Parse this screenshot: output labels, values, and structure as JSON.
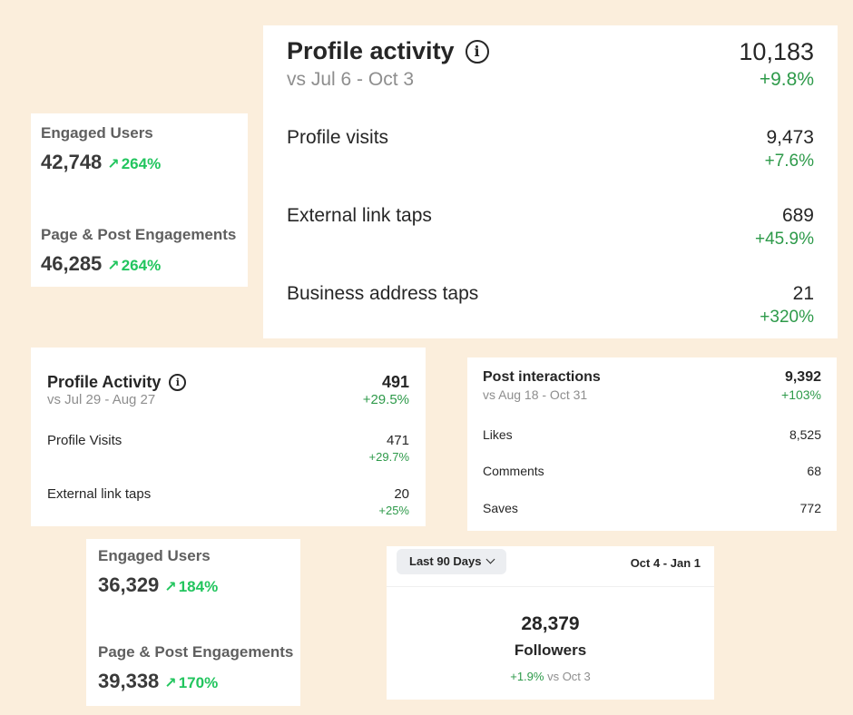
{
  "engaged_card_1": {
    "engaged_label": "Engaged Users",
    "engaged_value": "42,748",
    "engaged_arrow": "↗",
    "engaged_pct": "264%",
    "engagements_label": "Page & Post Engagements",
    "engagements_value": "46,285",
    "engagements_arrow": "↗",
    "engagements_pct": "264%"
  },
  "profile_activity_large": {
    "title": "Profile activity",
    "info_icon": "i",
    "subtitle": "vs Jul 6 - Oct 3",
    "total": "10,183",
    "total_change": "+9.8%",
    "rows": [
      {
        "label": "Profile visits",
        "value": "9,473",
        "change": "+7.6%"
      },
      {
        "label": "External link taps",
        "value": "689",
        "change": "+45.9%"
      },
      {
        "label": "Business address taps",
        "value": "21",
        "change": "+320%"
      }
    ]
  },
  "profile_activity_small": {
    "title": "Profile Activity",
    "info_icon": "i",
    "subtitle": "vs Jul 29 - Aug 27",
    "total": "491",
    "total_change": "+29.5%",
    "rows": [
      {
        "label": "Profile Visits",
        "value": "471",
        "change": "+29.7%"
      },
      {
        "label": "External link taps",
        "value": "20",
        "change": "+25%"
      }
    ]
  },
  "post_interactions": {
    "title": "Post interactions",
    "subtitle": "vs Aug 18 - Oct 31",
    "total": "9,392",
    "total_change": "+103%",
    "rows": [
      {
        "label": "Likes",
        "value": "8,525"
      },
      {
        "label": "Comments",
        "value": "68"
      },
      {
        "label": "Saves",
        "value": "772"
      }
    ]
  },
  "engaged_card_2": {
    "engaged_label": "Engaged Users",
    "engaged_value": "36,329",
    "engaged_arrow": "↗",
    "engaged_pct": "184%",
    "engagements_label": "Page & Post Engagements",
    "engagements_value": "39,338",
    "engagements_arrow": "↗",
    "engagements_pct": "170%"
  },
  "followers": {
    "range_label": "Last 90 Days",
    "dates": "Oct 4 - Jan 1",
    "count": "28,379",
    "label": "Followers",
    "change": "+1.9%",
    "change_suffix": " vs Oct 3"
  },
  "colors": {
    "background": "#fbeedc",
    "card": "#ffffff",
    "positive_green": "#2e9a4a",
    "bright_green": "#22c55e",
    "muted_grey": "#8e8e8e"
  }
}
